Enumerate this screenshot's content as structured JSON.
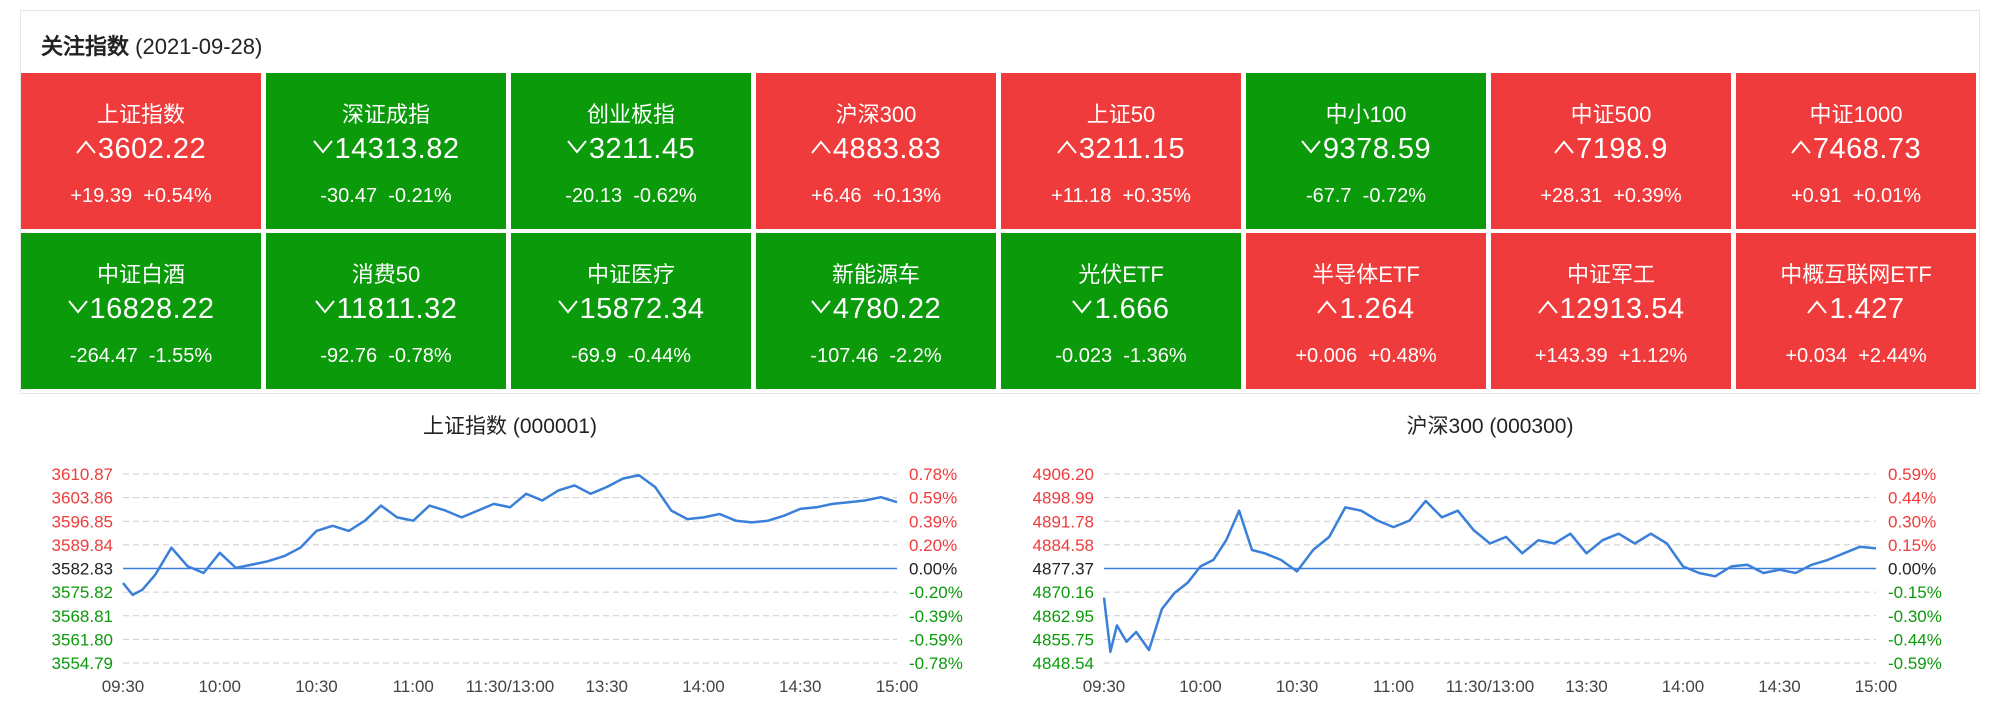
{
  "header": {
    "title": "关注指数",
    "date": "(2021-09-28)"
  },
  "colors": {
    "up": "#ef3b3b",
    "down": "#0a9a0a",
    "line": "#3a7fd9",
    "grid": "#cccccc"
  },
  "indices": [
    {
      "name": "上证指数",
      "price": "3602.22",
      "change": "+19.39",
      "pct": "+0.54%",
      "dir": "up"
    },
    {
      "name": "深证成指",
      "price": "14313.82",
      "change": "-30.47",
      "pct": "-0.21%",
      "dir": "down"
    },
    {
      "name": "创业板指",
      "price": "3211.45",
      "change": "-20.13",
      "pct": "-0.62%",
      "dir": "down"
    },
    {
      "name": "沪深300",
      "price": "4883.83",
      "change": "+6.46",
      "pct": "+0.13%",
      "dir": "up"
    },
    {
      "name": "上证50",
      "price": "3211.15",
      "change": "+11.18",
      "pct": "+0.35%",
      "dir": "up"
    },
    {
      "name": "中小100",
      "price": "9378.59",
      "change": "-67.7",
      "pct": "-0.72%",
      "dir": "down"
    },
    {
      "name": "中证500",
      "price": "7198.9",
      "change": "+28.31",
      "pct": "+0.39%",
      "dir": "up"
    },
    {
      "name": "中证1000",
      "price": "7468.73",
      "change": "+0.91",
      "pct": "+0.01%",
      "dir": "up"
    },
    {
      "name": "中证白酒",
      "price": "16828.22",
      "change": "-264.47",
      "pct": "-1.55%",
      "dir": "down"
    },
    {
      "name": "消费50",
      "price": "11811.32",
      "change": "-92.76",
      "pct": "-0.78%",
      "dir": "down"
    },
    {
      "name": "中证医疗",
      "price": "15872.34",
      "change": "-69.9",
      "pct": "-0.44%",
      "dir": "down"
    },
    {
      "name": "新能源车",
      "price": "4780.22",
      "change": "-107.46",
      "pct": "-2.2%",
      "dir": "down"
    },
    {
      "name": "光伏ETF",
      "price": "1.666",
      "change": "-0.023",
      "pct": "-1.36%",
      "dir": "down"
    },
    {
      "name": "半导体ETF",
      "price": "1.264",
      "change": "+0.006",
      "pct": "+0.48%",
      "dir": "up"
    },
    {
      "name": "中证军工",
      "price": "12913.54",
      "change": "+143.39",
      "pct": "+1.12%",
      "dir": "up"
    },
    {
      "name": "中概互联网ETF",
      "price": "1.427",
      "change": "+0.034",
      "pct": "+2.44%",
      "dir": "up"
    }
  ],
  "chart_data": [
    {
      "type": "line",
      "title": "上证指数 (000001)",
      "x_ticks": [
        "09:30",
        "10:00",
        "10:30",
        "11:00",
        "11:30/13:00",
        "13:30",
        "14:00",
        "14:30",
        "15:00"
      ],
      "y_left_ticks": [
        "3610.87",
        "3603.86",
        "3596.85",
        "3589.84",
        "3582.83",
        "3575.82",
        "3568.81",
        "3561.80",
        "3554.79"
      ],
      "y_right_ticks": [
        "0.78%",
        "0.59%",
        "0.39%",
        "0.20%",
        "0.00%",
        "-0.20%",
        "-0.39%",
        "-0.59%",
        "-0.78%"
      ],
      "prev_close": 3582.83,
      "ylim": [
        3554.79,
        3610.87
      ],
      "xlim": [
        0,
        240
      ],
      "x": [
        0,
        3,
        6,
        10,
        15,
        20,
        25,
        30,
        35,
        40,
        45,
        50,
        55,
        60,
        65,
        70,
        75,
        80,
        85,
        90,
        95,
        100,
        105,
        110,
        115,
        120,
        125,
        130,
        135,
        140,
        145,
        150,
        155,
        160,
        165,
        170,
        175,
        180,
        185,
        190,
        195,
        200,
        205,
        210,
        215,
        220,
        225,
        230,
        235,
        240
      ],
      "values": [
        3578.5,
        3575.0,
        3576.5,
        3581.0,
        3589.0,
        3583.5,
        3581.5,
        3587.5,
        3583.0,
        3584.0,
        3585.0,
        3586.5,
        3589.0,
        3594.0,
        3595.5,
        3594.0,
        3597.0,
        3601.5,
        3598.0,
        3597.0,
        3601.5,
        3600.0,
        3598.0,
        3600.0,
        3602.0,
        3601.0,
        3605.0,
        3603.0,
        3606.0,
        3607.5,
        3605.0,
        3607.0,
        3609.5,
        3610.5,
        3607.0,
        3600.0,
        3597.5,
        3598.0,
        3599.0,
        3597.0,
        3596.5,
        3597.0,
        3598.5,
        3600.5,
        3601.0,
        3602.0,
        3602.5,
        3603.0,
        3604.0,
        3602.5
      ]
    },
    {
      "type": "line",
      "title": "沪深300 (000300)",
      "x_ticks": [
        "09:30",
        "10:00",
        "10:30",
        "11:00",
        "11:30/13:00",
        "13:30",
        "14:00",
        "14:30",
        "15:00"
      ],
      "y_left_ticks": [
        "4906.20",
        "4898.99",
        "4891.78",
        "4884.58",
        "4877.37",
        "4870.16",
        "4862.95",
        "4855.75",
        "4848.54"
      ],
      "y_right_ticks": [
        "0.59%",
        "0.44%",
        "0.30%",
        "0.15%",
        "0.00%",
        "-0.15%",
        "-0.30%",
        "-0.44%",
        "-0.59%"
      ],
      "prev_close": 4877.37,
      "ylim": [
        4848.54,
        4906.2
      ],
      "xlim": [
        0,
        240
      ],
      "x": [
        0,
        2,
        4,
        7,
        10,
        14,
        18,
        22,
        26,
        30,
        34,
        38,
        42,
        46,
        50,
        55,
        60,
        65,
        70,
        75,
        80,
        85,
        90,
        95,
        100,
        105,
        110,
        115,
        120,
        125,
        130,
        135,
        140,
        145,
        150,
        155,
        160,
        165,
        170,
        175,
        180,
        185,
        190,
        195,
        200,
        205,
        210,
        215,
        220,
        225,
        230,
        235,
        240
      ],
      "values": [
        4868.5,
        4852.0,
        4860.0,
        4855.0,
        4858.0,
        4852.5,
        4865.0,
        4870.0,
        4873.0,
        4878.0,
        4880.0,
        4886.0,
        4895.0,
        4883.0,
        4882.0,
        4880.0,
        4876.5,
        4883.0,
        4887.0,
        4896.0,
        4895.0,
        4892.0,
        4890.0,
        4892.0,
        4898.0,
        4893.0,
        4895.0,
        4889.0,
        4885.0,
        4887.0,
        4882.0,
        4886.0,
        4885.0,
        4888.0,
        4882.0,
        4886.0,
        4888.0,
        4885.0,
        4888.0,
        4885.0,
        4878.0,
        4876.0,
        4875.0,
        4878.0,
        4878.5,
        4876.0,
        4877.0,
        4876.0,
        4878.5,
        4880.0,
        4882.0,
        4884.0,
        4883.5
      ]
    }
  ]
}
